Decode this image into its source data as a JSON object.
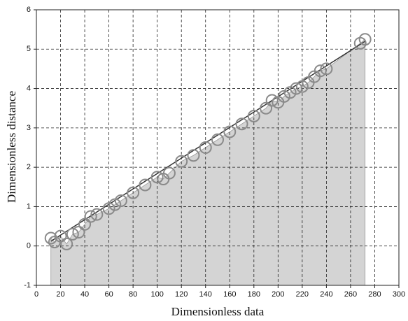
{
  "chart_data": {
    "type": "scatter",
    "x_label": "Dimensionless data",
    "y_label": "Dimensionless distance",
    "xlim": [
      0,
      300
    ],
    "ylim": [
      -1,
      6
    ],
    "xticks": [
      0,
      20,
      40,
      60,
      80,
      100,
      120,
      140,
      160,
      180,
      200,
      220,
      240,
      260,
      280,
      300
    ],
    "yticks": [
      -1,
      0,
      1,
      2,
      3,
      4,
      5,
      6
    ],
    "grid": true,
    "points": {
      "color": "#8a8a8a",
      "x": [
        12,
        15,
        20,
        25,
        30,
        35,
        40,
        45,
        50,
        60,
        65,
        70,
        80,
        90,
        100,
        105,
        110,
        120,
        130,
        140,
        150,
        160,
        170,
        180,
        190,
        195,
        200,
        205,
        210,
        215,
        220,
        225,
        230,
        235,
        240,
        268,
        272
      ],
      "y": [
        0.2,
        0.1,
        0.25,
        0.05,
        0.3,
        0.35,
        0.55,
        0.75,
        0.8,
        0.95,
        1.05,
        1.15,
        1.35,
        1.55,
        1.75,
        1.7,
        1.85,
        2.15,
        2.3,
        2.5,
        2.7,
        2.9,
        3.1,
        3.3,
        3.5,
        3.7,
        3.65,
        3.8,
        3.9,
        4.0,
        4.05,
        4.15,
        4.3,
        4.45,
        4.5,
        5.15,
        5.25
      ]
    },
    "line": {
      "color": "#333333",
      "x": [
        12,
        272
      ],
      "y": [
        0.12,
        5.2
      ]
    },
    "area_color": "#d4d4d4"
  }
}
